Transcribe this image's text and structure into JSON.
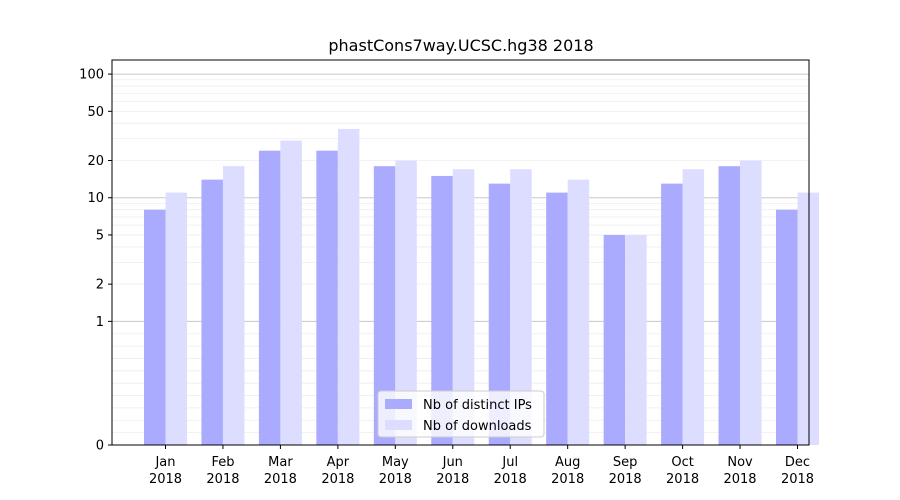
{
  "chart_data": {
    "type": "bar",
    "title": "phastCons7way.UCSC.hg38 2018",
    "xlabel": "",
    "ylabel": "",
    "yscale": "symlog",
    "ylim": [
      0,
      130
    ],
    "yticks": [
      0,
      1,
      2,
      5,
      10,
      20,
      50,
      100
    ],
    "grid": "horizontal",
    "legend_position": "lower-center",
    "categories": [
      [
        "Jan",
        "2018"
      ],
      [
        "Feb",
        "2018"
      ],
      [
        "Mar",
        "2018"
      ],
      [
        "Apr",
        "2018"
      ],
      [
        "May",
        "2018"
      ],
      [
        "Jun",
        "2018"
      ],
      [
        "Jul",
        "2018"
      ],
      [
        "Aug",
        "2018"
      ],
      [
        "Sep",
        "2018"
      ],
      [
        "Oct",
        "2018"
      ],
      [
        "Nov",
        "2018"
      ],
      [
        "Dec",
        "2018"
      ]
    ],
    "series": [
      {
        "name": "Nb of distinct IPs",
        "color": "#aaaaff",
        "values": [
          8,
          14,
          24,
          24,
          18,
          15,
          13,
          11,
          5,
          13,
          18,
          8
        ]
      },
      {
        "name": "Nb of downloads",
        "color": "#ddddff",
        "values": [
          11,
          18,
          29,
          36,
          20,
          17,
          17,
          14,
          5,
          17,
          20,
          11
        ]
      }
    ]
  }
}
